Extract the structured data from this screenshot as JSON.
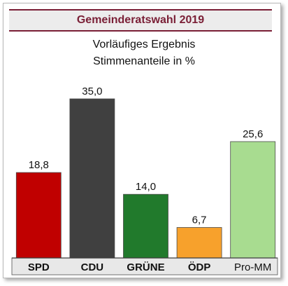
{
  "header": {
    "title": "Gemeinderatswahl 2019",
    "subtitle_line1": "Vorläufiges Ergebnis",
    "subtitle_line2": "Stimmenanteile in %"
  },
  "chart_data": {
    "type": "bar",
    "title": "Gemeinderatswahl 2019",
    "subtitle": "Vorläufiges Ergebnis Stimmenanteile in %",
    "categories": [
      "SPD",
      "CDU",
      "GRÜNE",
      "ÖDP",
      "Pro-MM"
    ],
    "values": [
      18.8,
      35.0,
      14.0,
      6.7,
      25.6
    ],
    "value_labels": [
      "18,8",
      "35,0",
      "14,0",
      "6,7",
      "25,6"
    ],
    "colors": [
      "#c00000",
      "#404040",
      "#217a2c",
      "#f7a12c",
      "#a8dc90"
    ],
    "ylim": [
      0,
      35.0
    ],
    "grid": false,
    "legend": "none"
  }
}
